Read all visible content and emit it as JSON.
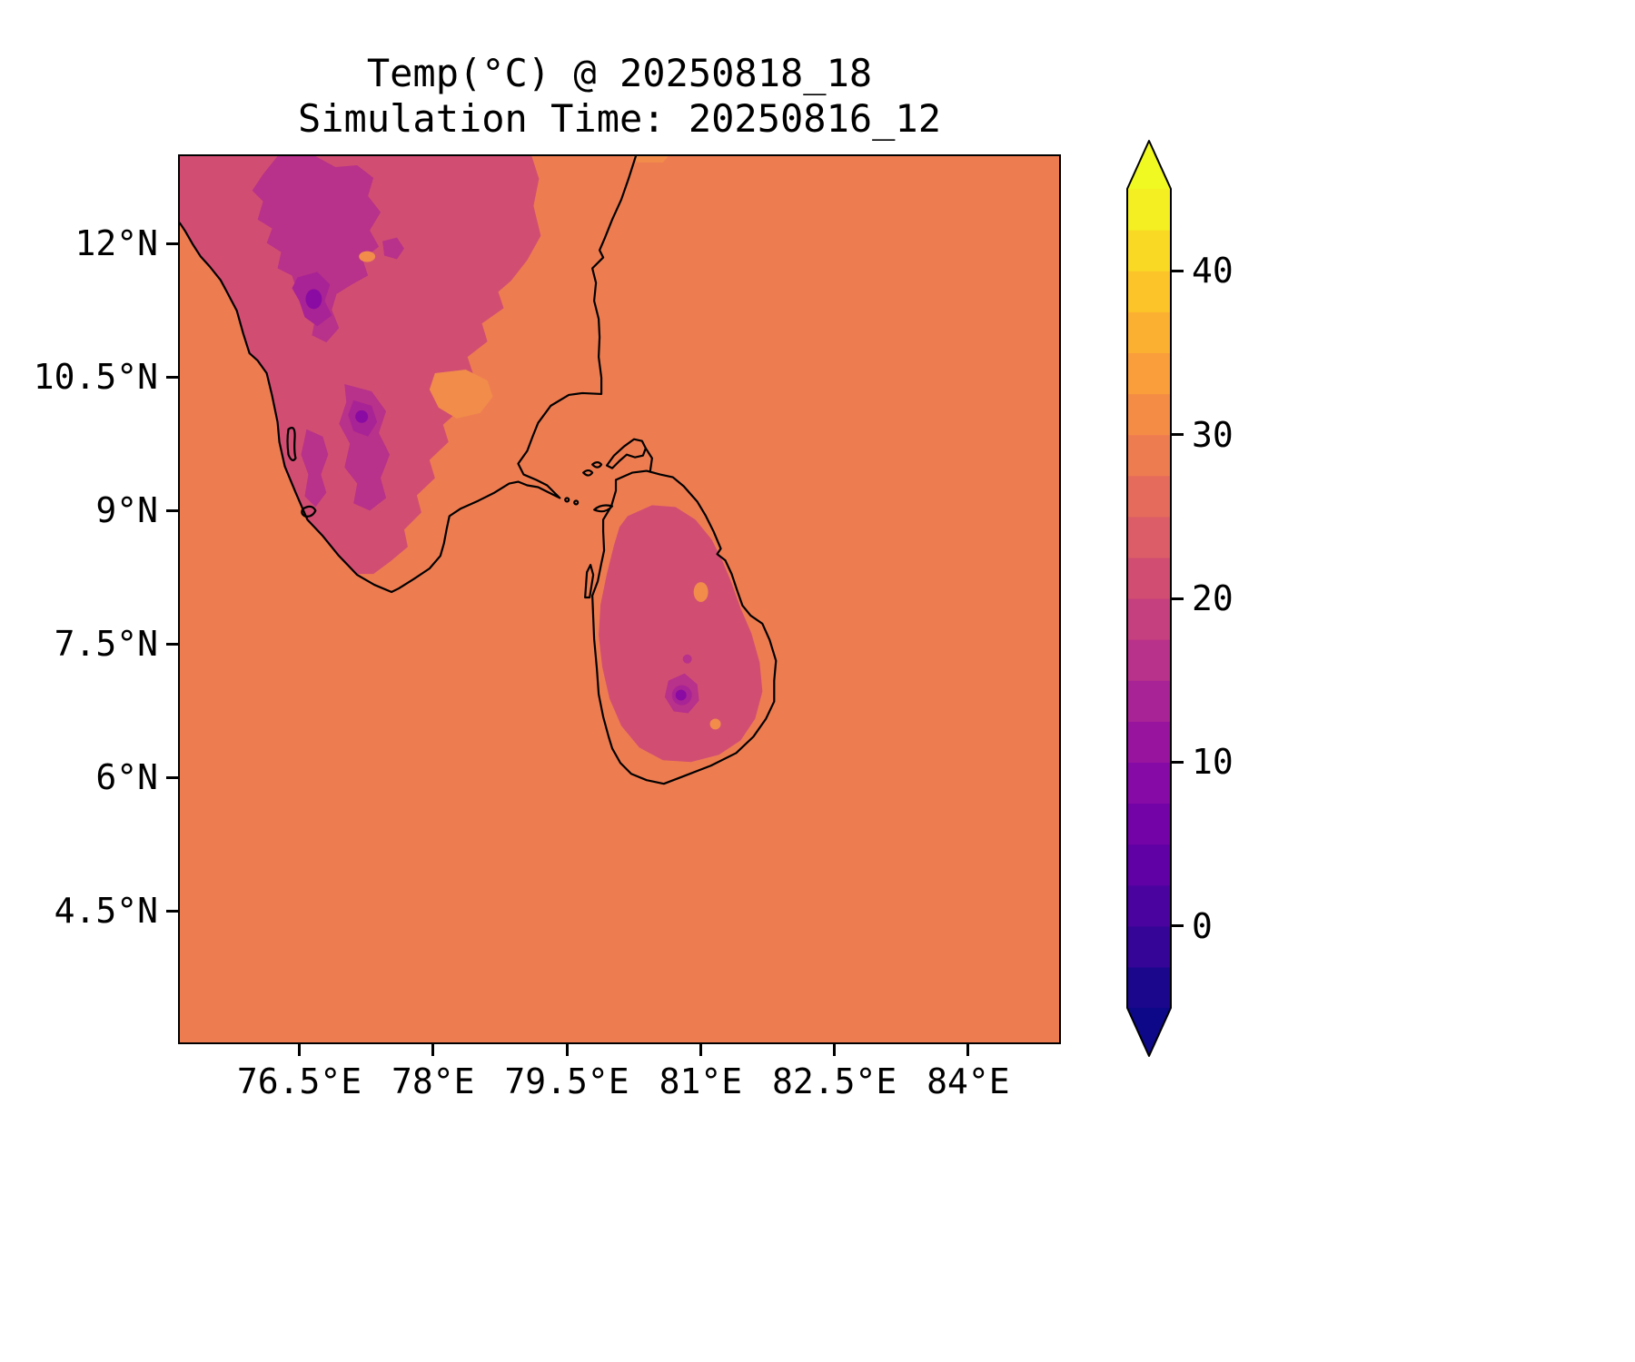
{
  "title": {
    "line1": "Temp(°C) @ 20250818_18",
    "line2": "Simulation Time: 20250816_12"
  },
  "chart_data": {
    "type": "heatmap",
    "subtype": "filled-contour-map",
    "title": "Temp(°C) @ 20250818_18",
    "subtitle": "Simulation Time: 20250816_12",
    "variable": "Temp (°C)",
    "valid_time": "20250818_18",
    "simulation_time": "20250816_12",
    "region": "Southern India and Sri Lanka with coastlines",
    "grid": "off",
    "x_axis": {
      "range_deg_east": [
        75.14,
        85.04
      ],
      "ticks": [
        {
          "value": 76.5,
          "label": "76.5°E"
        },
        {
          "value": 78.0,
          "label": "78°E"
        },
        {
          "value": 79.5,
          "label": "79.5°E"
        },
        {
          "value": 81.0,
          "label": "81°E"
        },
        {
          "value": 82.5,
          "label": "82.5°E"
        },
        {
          "value": 84.0,
          "label": "84°E"
        }
      ]
    },
    "y_axis": {
      "range_deg_north": [
        3.0,
        13.0
      ],
      "ticks": [
        {
          "value": 12.0,
          "label": "12°N"
        },
        {
          "value": 10.5,
          "label": "10.5°N"
        },
        {
          "value": 9.0,
          "label": "9°N"
        },
        {
          "value": 7.5,
          "label": "7.5°N"
        },
        {
          "value": 6.0,
          "label": "6°N"
        },
        {
          "value": 4.5,
          "label": "4.5°N"
        }
      ]
    },
    "colorbar": {
      "orientation": "vertical",
      "position": "right",
      "extend": "both",
      "colormap": "plasma",
      "level_min": -5,
      "level_max": 45,
      "level_step": 2.5,
      "tick_values": [
        0,
        10,
        20,
        30,
        40
      ],
      "tick_labels": [
        "0",
        "10",
        "20",
        "30",
        "40"
      ],
      "band_colors_bottom_to_top": [
        "#1a078c",
        "#340597",
        "#4b03a0",
        "#6001a5",
        "#7303a7",
        "#860aa5",
        "#98149f",
        "#a82395",
        "#b8318a",
        "#c5407e",
        "#d14e72",
        "#dc5d67",
        "#e56c5c",
        "#ee7c51",
        "#f48c46",
        "#f99e3b",
        "#fcb032",
        "#fcc429",
        "#f9d924",
        "#f3ef22"
      ],
      "under_color": "#0d0887",
      "over_color": "#f0f921"
    },
    "field_summary": {
      "ocean_temp_c": "27.5 to 30",
      "india_tamil_nadu_plains_temp_c": "27.5 to 30",
      "india_western_interior_temp_c": "20 to 22.5",
      "western_ghats_highlands_temp_c": "10 to 17.5",
      "sri_lanka_interior_temp_c": "20 to 22.5",
      "sri_lanka_central_highlands_temp_c": "7.5 to 15",
      "warm_valley_patches_temp_c": "27.5 to 32.5"
    },
    "map_colors": {
      "ocean": "#ee7c51",
      "land_pink": "#d14e72",
      "highland_purple": "#b8318a",
      "highland_deep": "#a82395",
      "highland_core": "#8a0ba3",
      "warm_patch": "#f18c4b",
      "coastline": "#000000"
    }
  }
}
